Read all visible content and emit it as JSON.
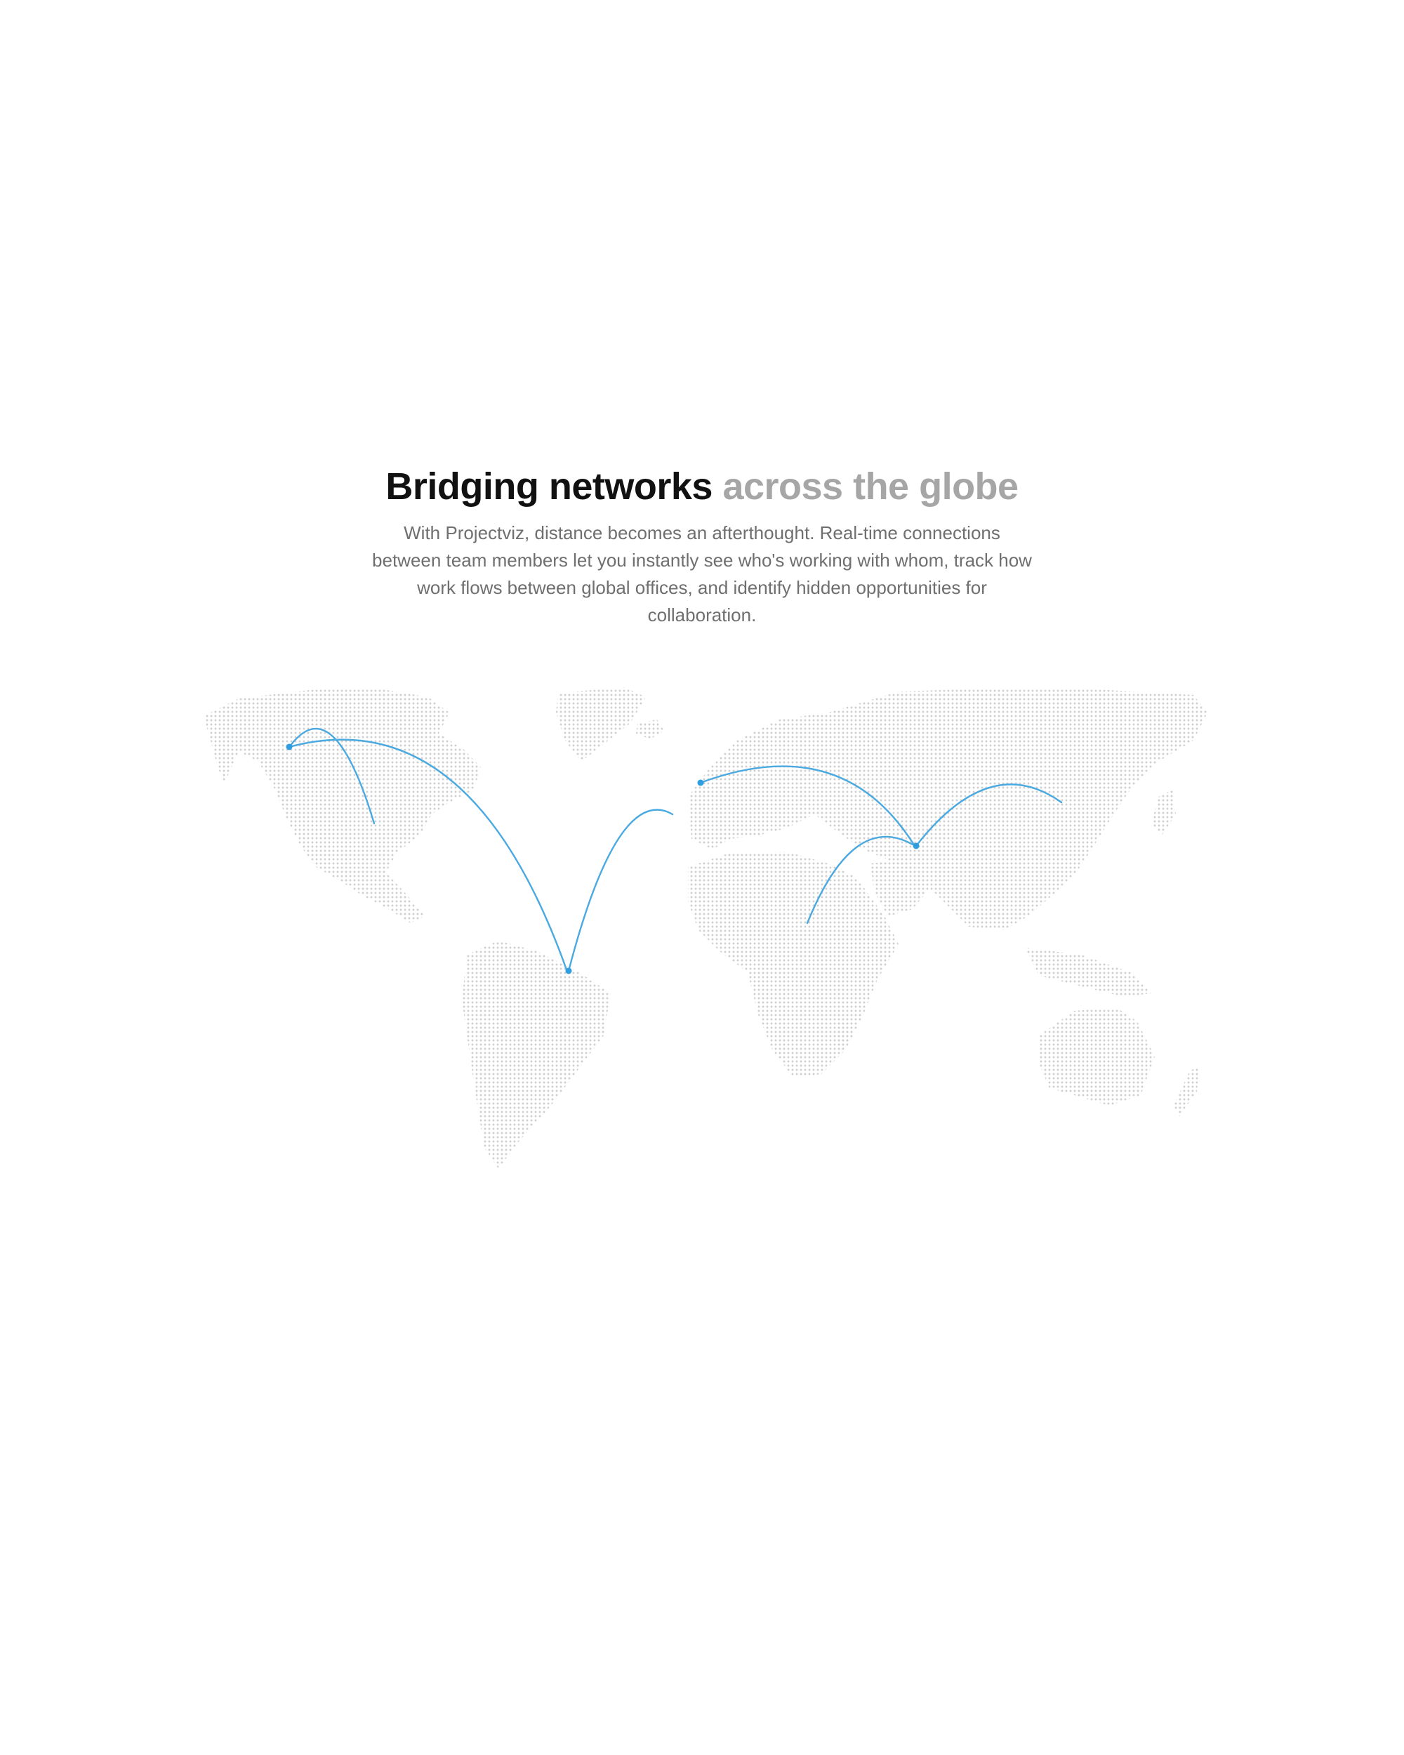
{
  "section": {
    "headline_strong": "Bridging networks",
    "headline_muted": "across the globe",
    "description": "With Projectviz, distance becomes an afterthought. Real-time connections between team members let you instantly see who's working with whom, track how work flows between global offices, and identify hidden opportunities for collaboration."
  },
  "map": {
    "dot_color": "#cfcfcf",
    "arc_color": "#4aa9e0",
    "hub_color": "#2f9ee0"
  }
}
